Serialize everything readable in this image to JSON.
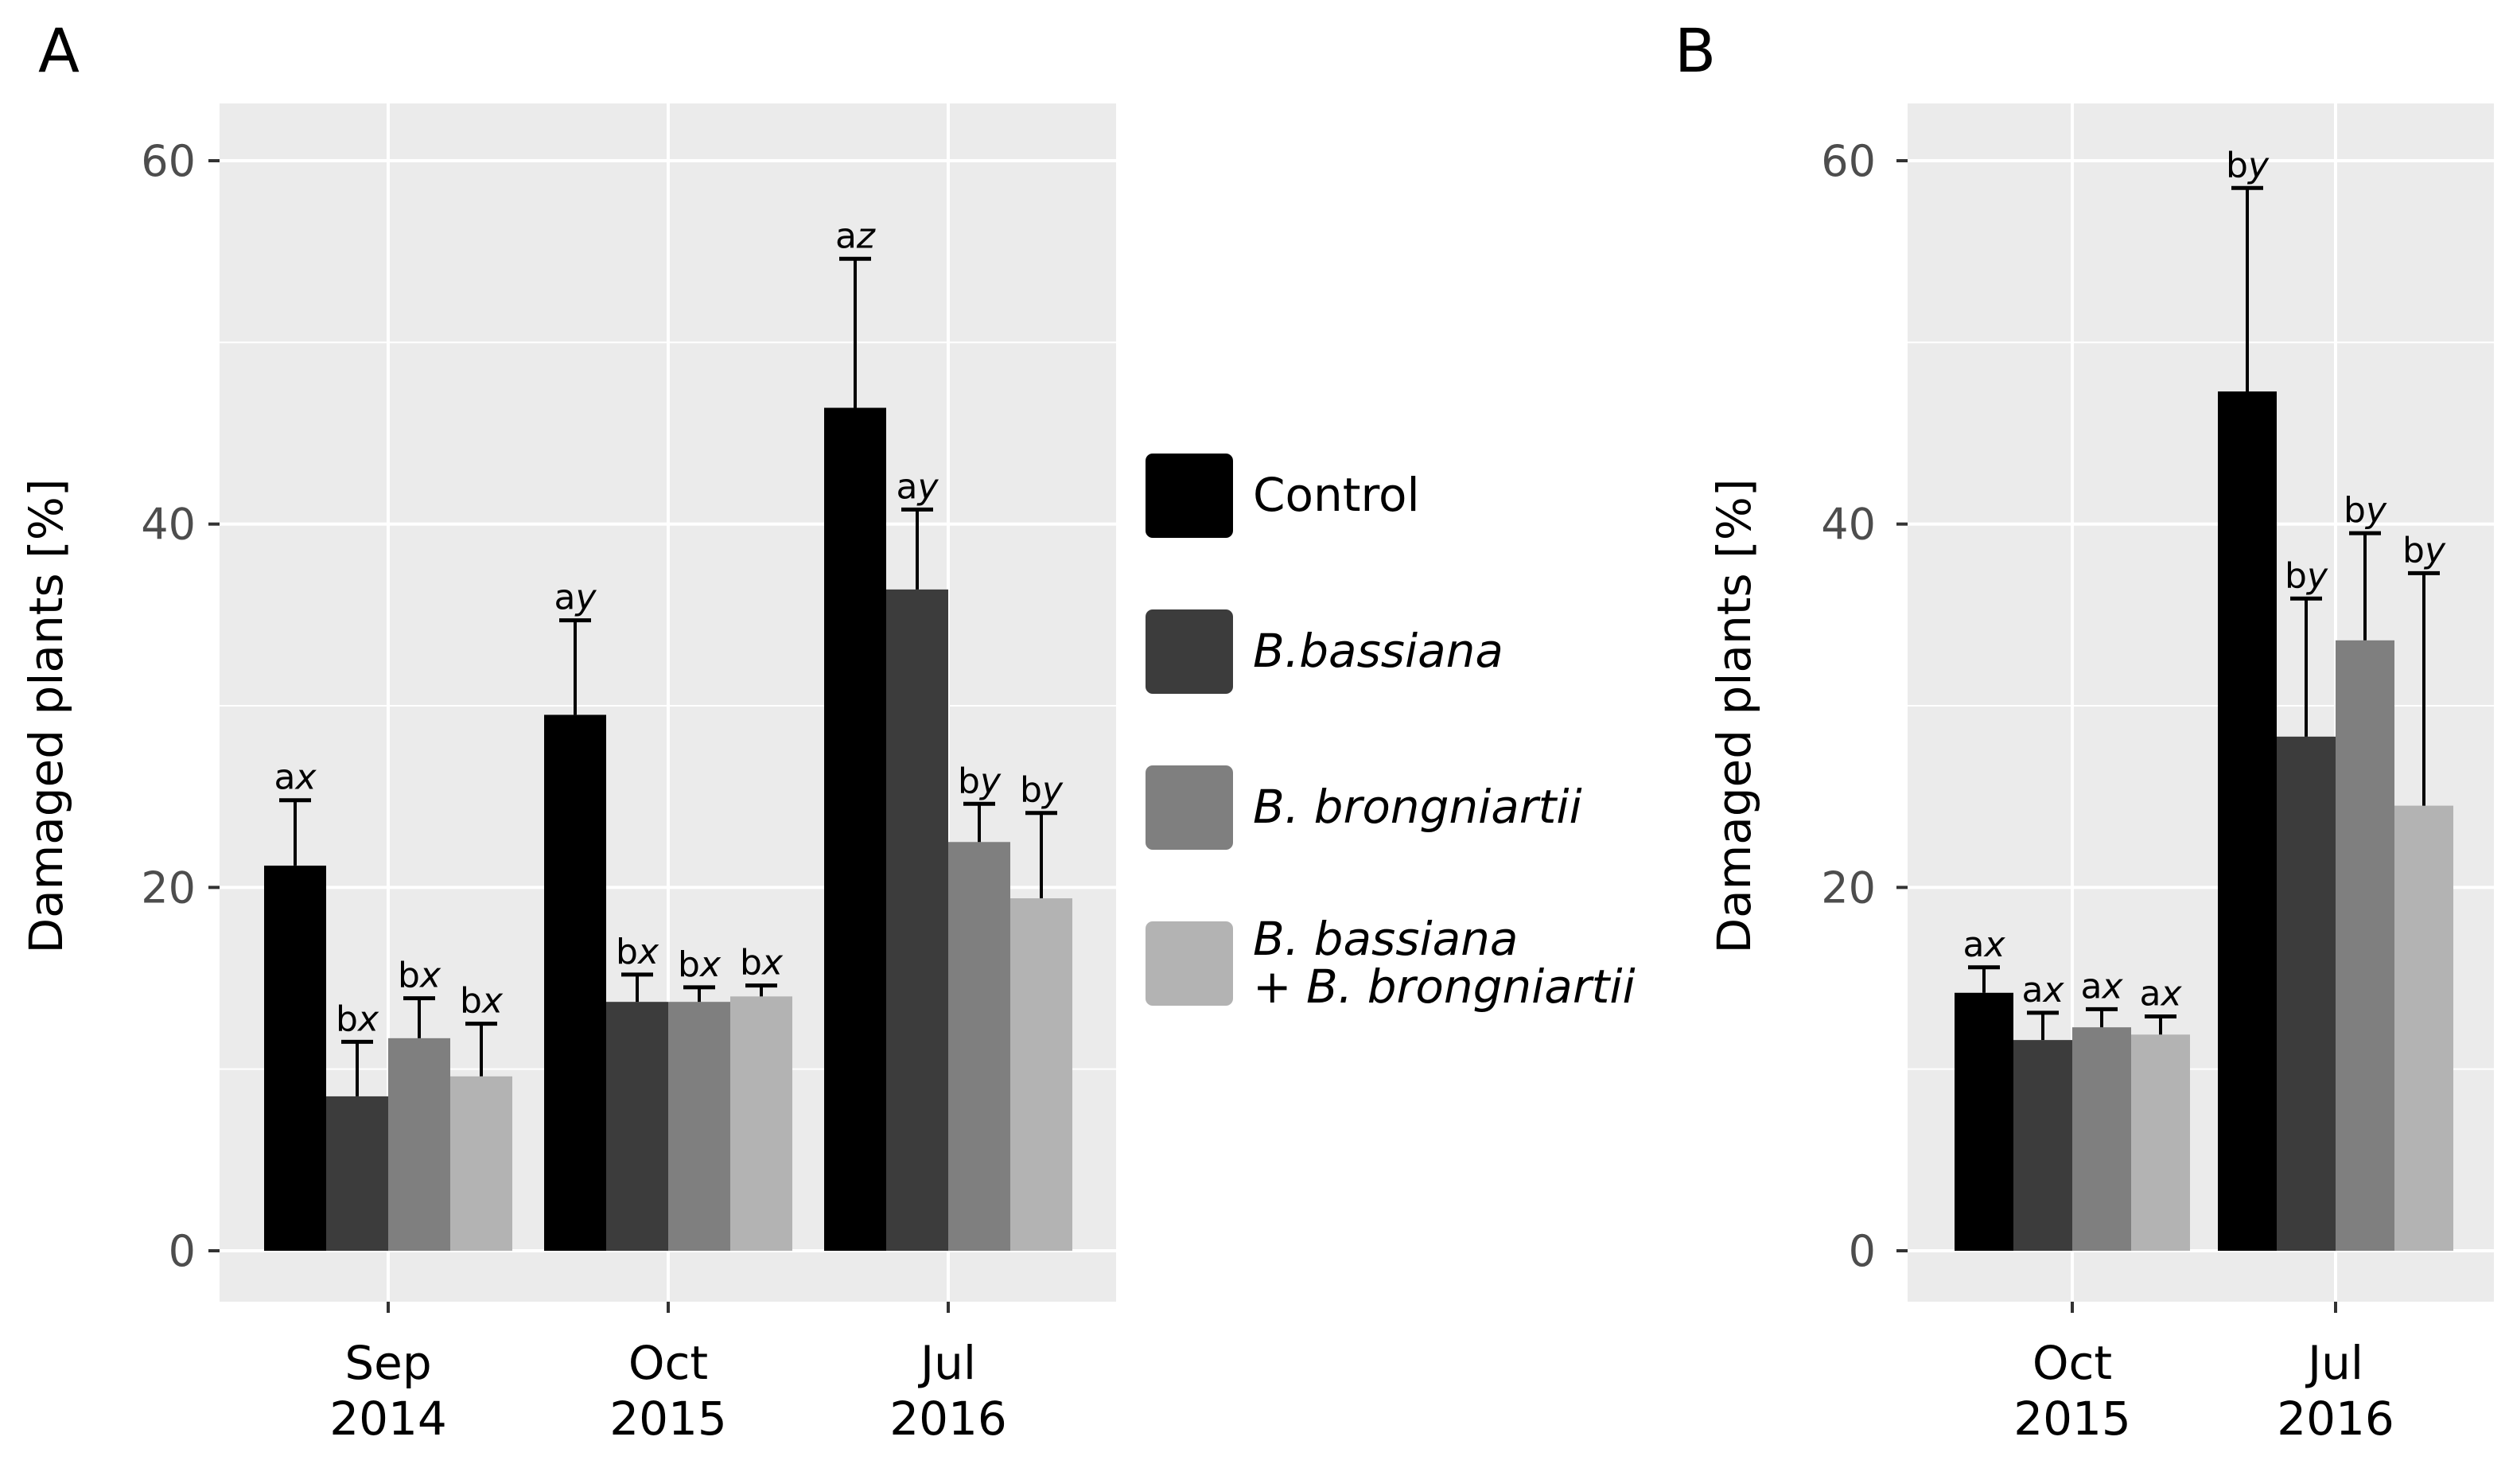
{
  "legend": {
    "title": "",
    "position": "center-middle",
    "items": [
      {
        "label": "Control",
        "color": "#000000",
        "italic": false
      },
      {
        "label": "B.bassiana",
        "color": "#3c3c3c",
        "italic": true
      },
      {
        "label": "B. brongniartii",
        "color": "#7f7f7f",
        "italic": true
      },
      {
        "label_lines": [
          "B. bassiana",
          "+ B. brongniartii"
        ],
        "color": "#b3b3b3",
        "italic": true
      }
    ]
  },
  "colors": {
    "panel_bg": "#ebebeb",
    "grid": "#ffffff",
    "axis_text": "#4d4d4d",
    "series": [
      "#000000",
      "#3c3c3c",
      "#7f7f7f",
      "#b3b3b3"
    ]
  },
  "chart_data": [
    {
      "type": "bar",
      "panel_label": "A",
      "title": "",
      "xlabel": "",
      "ylabel": "Damaged plants [%]",
      "ylim": [
        -5,
        63
      ],
      "yticks": [
        0,
        20,
        40,
        60
      ],
      "grid": true,
      "categories": [
        [
          "Sep",
          "2014"
        ],
        [
          "Oct",
          "2015"
        ],
        [
          "Jul",
          "2016"
        ]
      ],
      "series": [
        {
          "name": "Control",
          "values": [
            21.2,
            29.5,
            46.4
          ],
          "errors": [
            3.6,
            5.2,
            8.2
          ],
          "letters": [
            "a",
            "a",
            "a"
          ],
          "groups": [
            "x",
            "y",
            "z"
          ]
        },
        {
          "name": "B.bassiana",
          "values": [
            8.5,
            13.7,
            36.4
          ],
          "errors": [
            3.0,
            1.5,
            4.4
          ],
          "letters": [
            "b",
            "b",
            "a"
          ],
          "groups": [
            "x",
            "x",
            "y"
          ]
        },
        {
          "name": "B. brongniartii",
          "values": [
            11.7,
            13.7,
            22.5
          ],
          "errors": [
            2.2,
            0.8,
            2.1
          ],
          "letters": [
            "b",
            "b",
            "b"
          ],
          "groups": [
            "x",
            "x",
            "y"
          ]
        },
        {
          "name": "B. bassiana + B. brongniartii",
          "values": [
            9.6,
            14.0,
            19.4
          ],
          "errors": [
            2.9,
            0.6,
            4.7
          ],
          "letters": [
            "b",
            "b",
            "b"
          ],
          "groups": [
            "x",
            "x",
            "y"
          ]
        }
      ]
    },
    {
      "type": "bar",
      "panel_label": "B",
      "title": "",
      "xlabel": "",
      "ylabel": "Damaged plants [%]",
      "ylim": [
        -5,
        63
      ],
      "yticks": [
        0,
        20,
        40,
        60
      ],
      "grid": true,
      "categories": [
        [
          "Oct",
          "2015"
        ],
        [
          "Jul",
          "2016"
        ]
      ],
      "series": [
        {
          "name": "Control",
          "values": [
            14.2,
            47.3
          ],
          "errors": [
            1.4,
            11.2
          ],
          "letters": [
            "a",
            "b"
          ],
          "groups": [
            "x",
            "y"
          ]
        },
        {
          "name": "B.bassiana",
          "values": [
            11.6,
            28.3
          ],
          "errors": [
            1.5,
            7.6
          ],
          "letters": [
            "a",
            "b"
          ],
          "groups": [
            "x",
            "y"
          ]
        },
        {
          "name": "B. brongniartii",
          "values": [
            12.3,
            33.6
          ],
          "errors": [
            1.0,
            5.9
          ],
          "letters": [
            "a",
            "b"
          ],
          "groups": [
            "x",
            "y"
          ]
        },
        {
          "name": "B. bassiana + B. brongniartii",
          "values": [
            11.9,
            24.5
          ],
          "errors": [
            1.0,
            12.8
          ],
          "letters": [
            "a",
            "b"
          ],
          "groups": [
            "x",
            "y"
          ]
        }
      ]
    }
  ]
}
